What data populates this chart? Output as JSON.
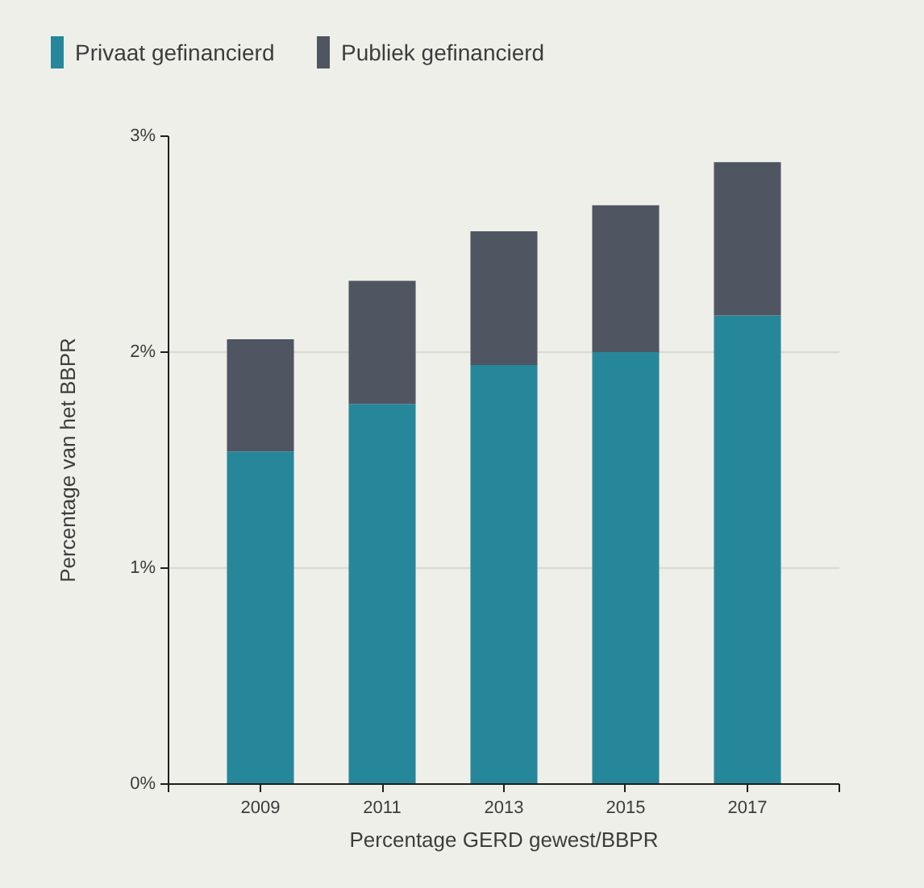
{
  "chart_data": {
    "type": "bar",
    "stacked": true,
    "xlabel": "Percentage GERD gewest/BBPR",
    "ylabel": "Percentage van het BBPR",
    "categories": [
      "2009",
      "2011",
      "2013",
      "2015",
      "2017"
    ],
    "series": [
      {
        "name": "Privaat gefinancierd",
        "color": "#27879a",
        "values": [
          1.54,
          1.76,
          1.94,
          2.0,
          2.17
        ]
      },
      {
        "name": "Publiek gefinancierd",
        "color": "#4f5561",
        "values": [
          0.52,
          0.57,
          0.62,
          0.68,
          0.71
        ]
      }
    ],
    "ylim": [
      0,
      3
    ],
    "yticks": [
      {
        "value": 0,
        "label": "0%"
      },
      {
        "value": 1,
        "label": "1%"
      },
      {
        "value": 2,
        "label": "2%"
      },
      {
        "value": 3,
        "label": "3%"
      }
    ],
    "grid": "y",
    "legend": "top left"
  }
}
